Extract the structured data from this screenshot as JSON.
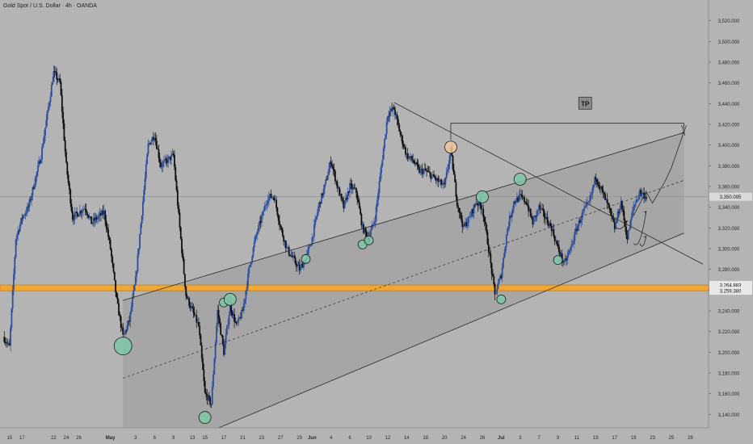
{
  "window": {
    "title": "Gold Spot / U.S. Dollar · 4h · OANDA"
  },
  "chart_data": {
    "type": "candlestick",
    "symbol": "Gold Spot / U.S. Dollar",
    "interval": "4h",
    "source": "OANDA",
    "colors": {
      "background": "#b4b4b4",
      "up": "#2e4f9e",
      "down": "#101010",
      "zone": "#f0a830",
      "zone_border": "#c97b10",
      "marker_green": "#7fc6a6",
      "marker_orange": "#f1c79a",
      "channel_fill": "#a4a4a4",
      "line": "#2b2b2b",
      "current_price_line": "#8c8c8c"
    },
    "ylim": [
      3127,
      3540
    ],
    "y_ticks": [
      3140,
      3160,
      3180,
      3200,
      3220,
      3240,
      3260,
      3280,
      3300,
      3320,
      3340,
      3360,
      3380,
      3400,
      3420,
      3440,
      3460,
      3480,
      3500,
      3520
    ],
    "y_tick_labels": [
      "3,140.000",
      "3,160.000",
      "3,180.000",
      "3,200.000",
      "3,220.000",
      "3,240.000",
      "3,260.000",
      "3,280.000",
      "3,300.000",
      "3,320.000",
      "3,340.000",
      "3,360.000",
      "3,380.000",
      "3,400.000",
      "3,420.000",
      "3,440.000",
      "3,460.000",
      "3,480.000",
      "3,500.000",
      "3,520.000"
    ],
    "x_ticks": [
      {
        "date": "2025-04-15",
        "label": "15"
      },
      {
        "date": "2025-04-17",
        "label": "17"
      },
      {
        "date": "2025-04-22",
        "label": "22"
      },
      {
        "date": "2025-04-24",
        "label": "24"
      },
      {
        "date": "2025-04-26",
        "label": "26"
      },
      {
        "date": "2025-05-01",
        "label": "May",
        "bold": true
      },
      {
        "date": "2025-05-05",
        "label": "3"
      },
      {
        "date": "2025-05-08",
        "label": "6"
      },
      {
        "date": "2025-05-11",
        "label": "9"
      },
      {
        "date": "2025-05-14",
        "label": "13"
      },
      {
        "date": "2025-05-16",
        "label": "15"
      },
      {
        "date": "2025-05-19",
        "label": "17"
      },
      {
        "date": "2025-05-22",
        "label": "21"
      },
      {
        "date": "2025-05-25",
        "label": "23"
      },
      {
        "date": "2025-05-28",
        "label": "27"
      },
      {
        "date": "2025-05-31",
        "label": "29"
      },
      {
        "date": "2025-06-02",
        "label": "Jun",
        "bold": true
      },
      {
        "date": "2025-06-05",
        "label": "4"
      },
      {
        "date": "2025-06-08",
        "label": "6"
      },
      {
        "date": "2025-06-11",
        "label": "10"
      },
      {
        "date": "2025-06-14",
        "label": "12"
      },
      {
        "date": "2025-06-17",
        "label": "14"
      },
      {
        "date": "2025-06-20",
        "label": "18"
      },
      {
        "date": "2025-06-23",
        "label": "20"
      },
      {
        "date": "2025-06-26",
        "label": "24"
      },
      {
        "date": "2025-06-29",
        "label": "26"
      },
      {
        "date": "2025-07-02",
        "label": "Jul",
        "bold": true
      },
      {
        "date": "2025-07-05",
        "label": "3"
      },
      {
        "date": "2025-07-08",
        "label": "7"
      },
      {
        "date": "2025-07-11",
        "label": "9"
      },
      {
        "date": "2025-07-14",
        "label": "11"
      },
      {
        "date": "2025-07-17",
        "label": "15"
      },
      {
        "date": "2025-07-20",
        "label": "17"
      },
      {
        "date": "2025-07-23",
        "label": "19"
      },
      {
        "date": "2025-07-26",
        "label": "23"
      },
      {
        "date": "2025-07-29",
        "label": "25"
      },
      {
        "date": "2025-08-01",
        "label": "29"
      }
    ],
    "candle_anchors": [
      {
        "date": "2025-04-14",
        "price": 3215
      },
      {
        "date": "2025-04-15",
        "price": 3205
      },
      {
        "date": "2025-04-16",
        "price": 3310
      },
      {
        "date": "2025-04-17",
        "price": 3330
      },
      {
        "date": "2025-04-18",
        "price": 3340
      },
      {
        "date": "2025-04-20",
        "price": 3390
      },
      {
        "date": "2025-04-22",
        "price": 3470
      },
      {
        "date": "2025-04-23",
        "price": 3460
      },
      {
        "date": "2025-04-24",
        "price": 3380
      },
      {
        "date": "2025-04-25",
        "price": 3330
      },
      {
        "date": "2025-04-27",
        "price": 3340
      },
      {
        "date": "2025-04-28",
        "price": 3325
      },
      {
        "date": "2025-04-30",
        "price": 3335
      },
      {
        "date": "2025-05-01",
        "price": 3300
      },
      {
        "date": "2025-05-02",
        "price": 3250
      },
      {
        "date": "2025-05-03",
        "price": 3215
      },
      {
        "date": "2025-05-04",
        "price": 3230
      },
      {
        "date": "2025-05-05",
        "price": 3270
      },
      {
        "date": "2025-05-07",
        "price": 3400
      },
      {
        "date": "2025-05-08",
        "price": 3410
      },
      {
        "date": "2025-05-09",
        "price": 3380
      },
      {
        "date": "2025-05-11",
        "price": 3390
      },
      {
        "date": "2025-05-12",
        "price": 3320
      },
      {
        "date": "2025-05-13",
        "price": 3255
      },
      {
        "date": "2025-05-14",
        "price": 3240
      },
      {
        "date": "2025-05-15",
        "price": 3225
      },
      {
        "date": "2025-05-16",
        "price": 3160
      },
      {
        "date": "2025-05-17",
        "price": 3150
      },
      {
        "date": "2025-05-18",
        "price": 3240
      },
      {
        "date": "2025-05-19",
        "price": 3200
      },
      {
        "date": "2025-05-20",
        "price": 3245
      },
      {
        "date": "2025-05-21",
        "price": 3225
      },
      {
        "date": "2025-05-22",
        "price": 3240
      },
      {
        "date": "2025-05-23",
        "price": 3280
      },
      {
        "date": "2025-05-24",
        "price": 3310
      },
      {
        "date": "2025-05-25",
        "price": 3330
      },
      {
        "date": "2025-05-26",
        "price": 3350
      },
      {
        "date": "2025-05-27",
        "price": 3350
      },
      {
        "date": "2025-05-28",
        "price": 3320
      },
      {
        "date": "2025-05-29",
        "price": 3300
      },
      {
        "date": "2025-05-30",
        "price": 3290
      },
      {
        "date": "2025-05-31",
        "price": 3280
      },
      {
        "date": "2025-06-01",
        "price": 3290
      },
      {
        "date": "2025-06-02",
        "price": 3310
      },
      {
        "date": "2025-06-03",
        "price": 3340
      },
      {
        "date": "2025-06-04",
        "price": 3360
      },
      {
        "date": "2025-06-05",
        "price": 3385
      },
      {
        "date": "2025-06-06",
        "price": 3360
      },
      {
        "date": "2025-06-07",
        "price": 3340
      },
      {
        "date": "2025-06-08",
        "price": 3360
      },
      {
        "date": "2025-06-09",
        "price": 3355
      },
      {
        "date": "2025-06-10",
        "price": 3320
      },
      {
        "date": "2025-06-11",
        "price": 3310
      },
      {
        "date": "2025-06-12",
        "price": 3330
      },
      {
        "date": "2025-06-13",
        "price": 3380
      },
      {
        "date": "2025-06-14",
        "price": 3430
      },
      {
        "date": "2025-06-15",
        "price": 3435
      },
      {
        "date": "2025-06-16",
        "price": 3410
      },
      {
        "date": "2025-06-17",
        "price": 3390
      },
      {
        "date": "2025-06-18",
        "price": 3385
      },
      {
        "date": "2025-06-19",
        "price": 3375
      },
      {
        "date": "2025-06-20",
        "price": 3375
      },
      {
        "date": "2025-06-21",
        "price": 3370
      },
      {
        "date": "2025-06-22",
        "price": 3365
      },
      {
        "date": "2025-06-23",
        "price": 3360
      },
      {
        "date": "2025-06-24",
        "price": 3395
      },
      {
        "date": "2025-06-25",
        "price": 3345
      },
      {
        "date": "2025-06-26",
        "price": 3320
      },
      {
        "date": "2025-06-27",
        "price": 3330
      },
      {
        "date": "2025-06-28",
        "price": 3345
      },
      {
        "date": "2025-06-29",
        "price": 3340
      },
      {
        "date": "2025-06-30",
        "price": 3300
      },
      {
        "date": "2025-07-01",
        "price": 3255
      },
      {
        "date": "2025-07-02",
        "price": 3275
      },
      {
        "date": "2025-07-03",
        "price": 3320
      },
      {
        "date": "2025-07-04",
        "price": 3345
      },
      {
        "date": "2025-07-05",
        "price": 3350
      },
      {
        "date": "2025-07-06",
        "price": 3345
      },
      {
        "date": "2025-07-07",
        "price": 3325
      },
      {
        "date": "2025-07-08",
        "price": 3340
      },
      {
        "date": "2025-07-09",
        "price": 3330
      },
      {
        "date": "2025-07-10",
        "price": 3320
      },
      {
        "date": "2025-07-11",
        "price": 3300
      },
      {
        "date": "2025-07-12",
        "price": 3285
      },
      {
        "date": "2025-07-13",
        "price": 3300
      },
      {
        "date": "2025-07-14",
        "price": 3320
      },
      {
        "date": "2025-07-15",
        "price": 3335
      },
      {
        "date": "2025-07-16",
        "price": 3345
      },
      {
        "date": "2025-07-17",
        "price": 3370
      },
      {
        "date": "2025-07-18",
        "price": 3355
      },
      {
        "date": "2025-07-19",
        "price": 3340
      },
      {
        "date": "2025-07-20",
        "price": 3320
      },
      {
        "date": "2025-07-21",
        "price": 3345
      },
      {
        "date": "2025-07-22",
        "price": 3310
      },
      {
        "date": "2025-07-23",
        "price": 3340
      },
      {
        "date": "2025-07-24",
        "price": 3355
      },
      {
        "date": "2025-07-25",
        "price": 3350
      }
    ],
    "support_zone": {
      "top": 3264.883,
      "bottom": 3259.38,
      "top_label": "3,264.883",
      "bottom_label": "3,259.380"
    },
    "current_price": {
      "value": 3350.095,
      "label": "3,350.095"
    },
    "rising_channel": {
      "upper": [
        {
          "date": "2025-05-03",
          "price": 3250
        },
        {
          "date": "2025-07-31",
          "price": 3412
        }
      ],
      "mid": [
        {
          "date": "2025-05-03",
          "price": 3175
        },
        {
          "date": "2025-07-31",
          "price": 3366
        }
      ],
      "lower": [
        {
          "date": "2025-05-17",
          "price": 3124
        },
        {
          "date": "2025-07-31",
          "price": 3315
        }
      ]
    },
    "descending_trendline": [
      {
        "date": "2025-06-15",
        "price": 3441
      },
      {
        "date": "2025-08-03",
        "price": 3285
      }
    ],
    "tp": {
      "label": "TP",
      "level": 3421,
      "from_date": "2025-06-24",
      "to_date": "2025-07-31",
      "tip_date": "2025-07-31",
      "tip_price": 3413
    },
    "projection_path": [
      {
        "date": "2025-07-23",
        "price": 3332
      },
      {
        "date": "2025-07-25",
        "price": 3355
      },
      {
        "date": "2025-07-26",
        "price": 3344
      },
      {
        "date": "2025-07-28",
        "price": 3365
      },
      {
        "date": "2025-07-29",
        "price": 3378
      },
      {
        "date": "2025-07-31",
        "price": 3413
      }
    ],
    "markers": [
      {
        "date": "2025-05-03",
        "price": 3206,
        "size": "large",
        "color": "green"
      },
      {
        "date": "2025-05-16",
        "price": 3137,
        "size": "medium",
        "color": "green"
      },
      {
        "date": "2025-05-19",
        "price": 3248,
        "size": "small",
        "color": "green"
      },
      {
        "date": "2025-05-20",
        "price": 3251,
        "size": "medium",
        "color": "green"
      },
      {
        "date": "2025-06-01",
        "price": 3290,
        "size": "small",
        "color": "green"
      },
      {
        "date": "2025-06-10",
        "price": 3304,
        "size": "small",
        "color": "green"
      },
      {
        "date": "2025-06-11",
        "price": 3308,
        "size": "small",
        "color": "green"
      },
      {
        "date": "2025-06-24",
        "price": 3398,
        "size": "medium",
        "color": "orange"
      },
      {
        "date": "2025-06-29",
        "price": 3350,
        "size": "medium",
        "color": "green"
      },
      {
        "date": "2025-07-02",
        "price": 3251,
        "size": "small",
        "color": "green"
      },
      {
        "date": "2025-07-05",
        "price": 3367,
        "size": "medium",
        "color": "green"
      },
      {
        "date": "2025-07-11",
        "price": 3289,
        "size": "small",
        "color": "green"
      }
    ],
    "curved_arrows": [
      {
        "from": {
          "date": "2025-07-20",
          "price": 3322
        },
        "to": {
          "date": "2025-07-22",
          "price": 3327
        }
      },
      {
        "from": {
          "date": "2025-07-23",
          "price": 3305
        },
        "to": {
          "date": "2025-07-25",
          "price": 3336
        }
      },
      {
        "from": {
          "date": "2025-07-24",
          "price": 3305
        },
        "to": {
          "date": "2025-07-25",
          "price": 3312
        }
      }
    ]
  }
}
